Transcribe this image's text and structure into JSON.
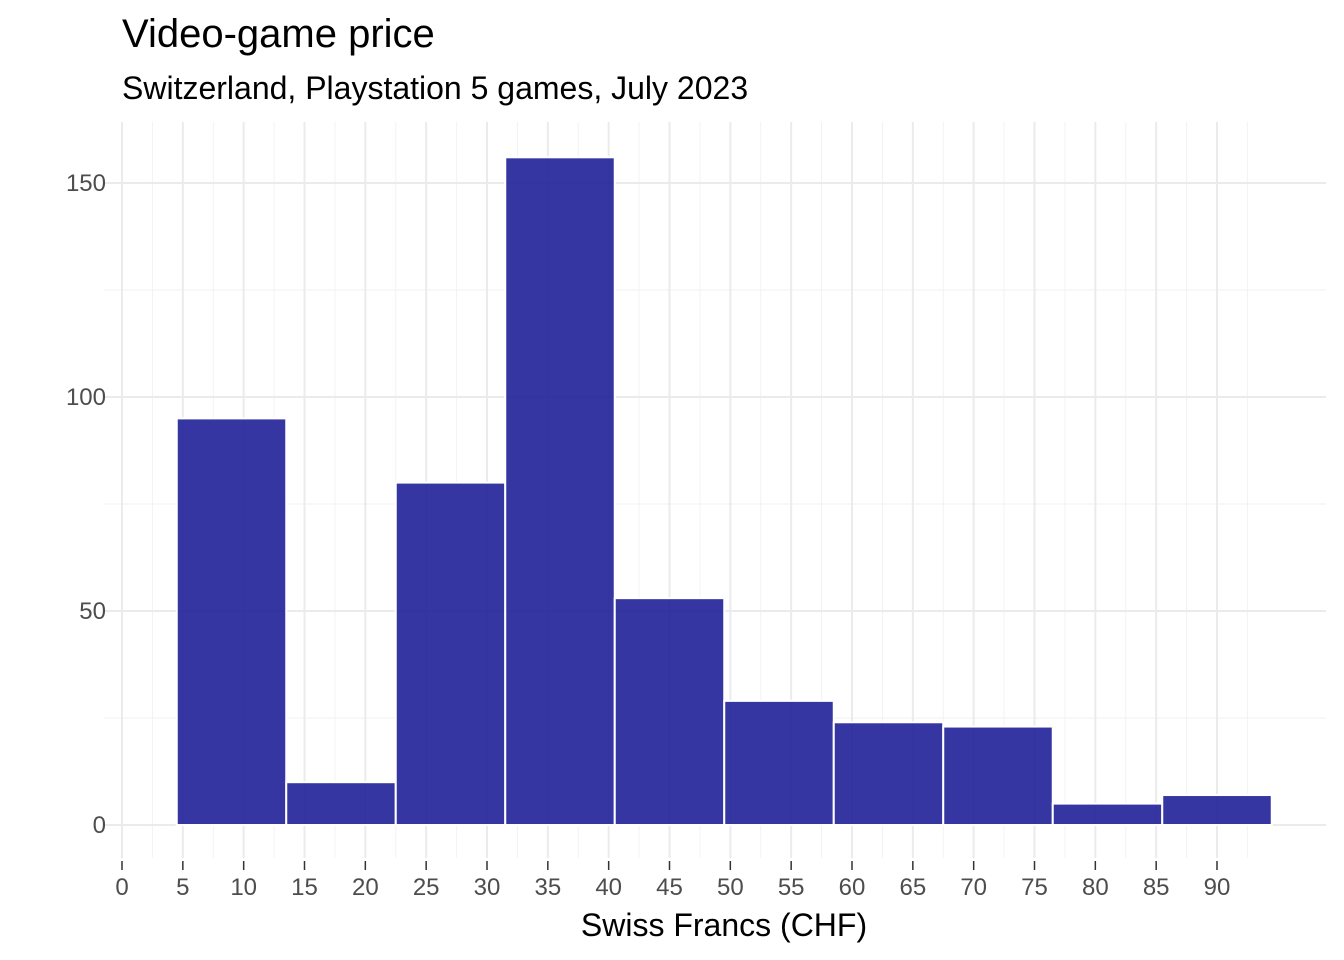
{
  "chart_data": {
    "type": "bar",
    "title": "Video-game price",
    "subtitle": "Switzerland, Playstation 5 games, July 2023",
    "xlabel": "Swiss Francs (CHF)",
    "ylabel": "",
    "bins": [
      {
        "x0": 4.5,
        "x1": 13.5,
        "count": 95
      },
      {
        "x0": 13.5,
        "x1": 22.5,
        "count": 10
      },
      {
        "x0": 22.5,
        "x1": 31.5,
        "count": 80
      },
      {
        "x0": 31.5,
        "x1": 40.5,
        "count": 156
      },
      {
        "x0": 40.5,
        "x1": 49.5,
        "count": 53
      },
      {
        "x0": 49.5,
        "x1": 58.5,
        "count": 29
      },
      {
        "x0": 58.5,
        "x1": 67.5,
        "count": 24
      },
      {
        "x0": 67.5,
        "x1": 76.5,
        "count": 23
      },
      {
        "x0": 76.5,
        "x1": 85.5,
        "count": 5
      },
      {
        "x0": 85.5,
        "x1": 94.5,
        "count": 7
      }
    ],
    "xlim": [
      0,
      95
    ],
    "ylim": [
      0,
      162
    ],
    "x_ticks": [
      "0",
      "5",
      "10",
      "15",
      "20",
      "25",
      "30",
      "35",
      "40",
      "45",
      "50",
      "55",
      "60",
      "65",
      "70",
      "75",
      "80",
      "85",
      "90"
    ],
    "y_ticks": [
      "0",
      "50",
      "100",
      "150"
    ],
    "bar_color": "#1a1a96",
    "grid": true,
    "legend": "none"
  }
}
